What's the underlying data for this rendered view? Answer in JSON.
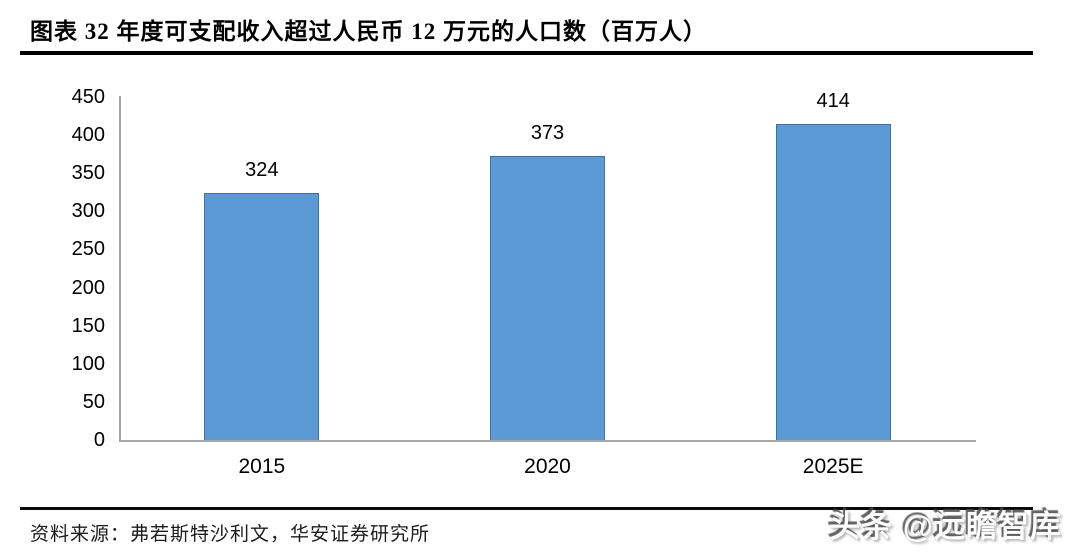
{
  "page": {
    "title": "图表 32 年度可支配收入超过人民币 12 万元的人口数（百万人）",
    "source": "资料来源：弗若斯特沙利文，华安证券研究所",
    "watermark": "头条 @远瞻智库"
  },
  "chart_data": {
    "type": "bar",
    "title": "年度可支配收入超过人民币 12 万元的人口数（百万人）",
    "categories": [
      "2015",
      "2020",
      "2025E"
    ],
    "values": [
      324,
      373,
      414
    ],
    "data_labels": [
      "324",
      "373",
      "414"
    ],
    "xlabel": "",
    "ylabel": "",
    "ylim": [
      0,
      450
    ],
    "y_ticks": [
      0,
      50,
      100,
      150,
      200,
      250,
      300,
      350,
      400,
      450
    ],
    "grid": false,
    "legend_position": "none",
    "bar_fill_color": "#5B9AD5",
    "bar_border_color": "#41719C",
    "axis_color": "#A6A6A6",
    "label_color": "#000000"
  }
}
